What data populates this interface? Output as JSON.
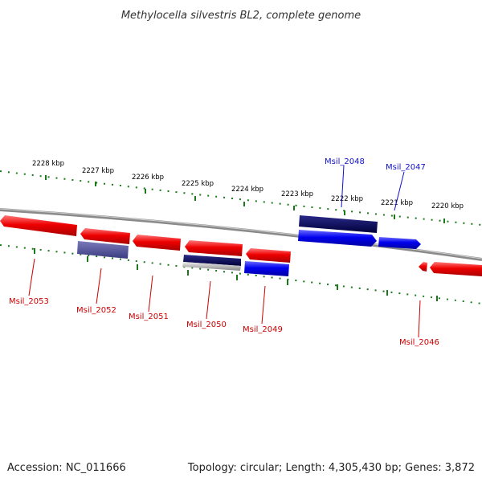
{
  "title": "Methylocella silvestris BL2, complete genome",
  "footer": {
    "accession": "Accession: NC_011666",
    "summary": "Topology: circular; Length: 4,305,430 bp; Genes: 3,872"
  },
  "kbp_ticks": [
    "2228 kbp",
    "2227 kbp",
    "2226 kbp",
    "2225 kbp",
    "2224 kbp",
    "2223 kbp",
    "2222 kbp",
    "2221 kbp",
    "2220 kbp"
  ],
  "gene_labels": {
    "top": [
      "Msil_2048",
      "Msil_2047"
    ],
    "bottom": [
      "Msil_2053",
      "Msil_2052",
      "Msil_2051",
      "Msil_2050",
      "Msil_2049",
      "Msil_2046"
    ]
  },
  "colors": {
    "forward_gene": "#e00000",
    "reverse_gene_label": "#cc0000",
    "forward_label": "#1010cc",
    "blue_gene": "#0000ee",
    "navy_gene": "#000066",
    "slate_gene": "#555599",
    "backbone": "#888888",
    "tick": "#1a7a1a"
  }
}
